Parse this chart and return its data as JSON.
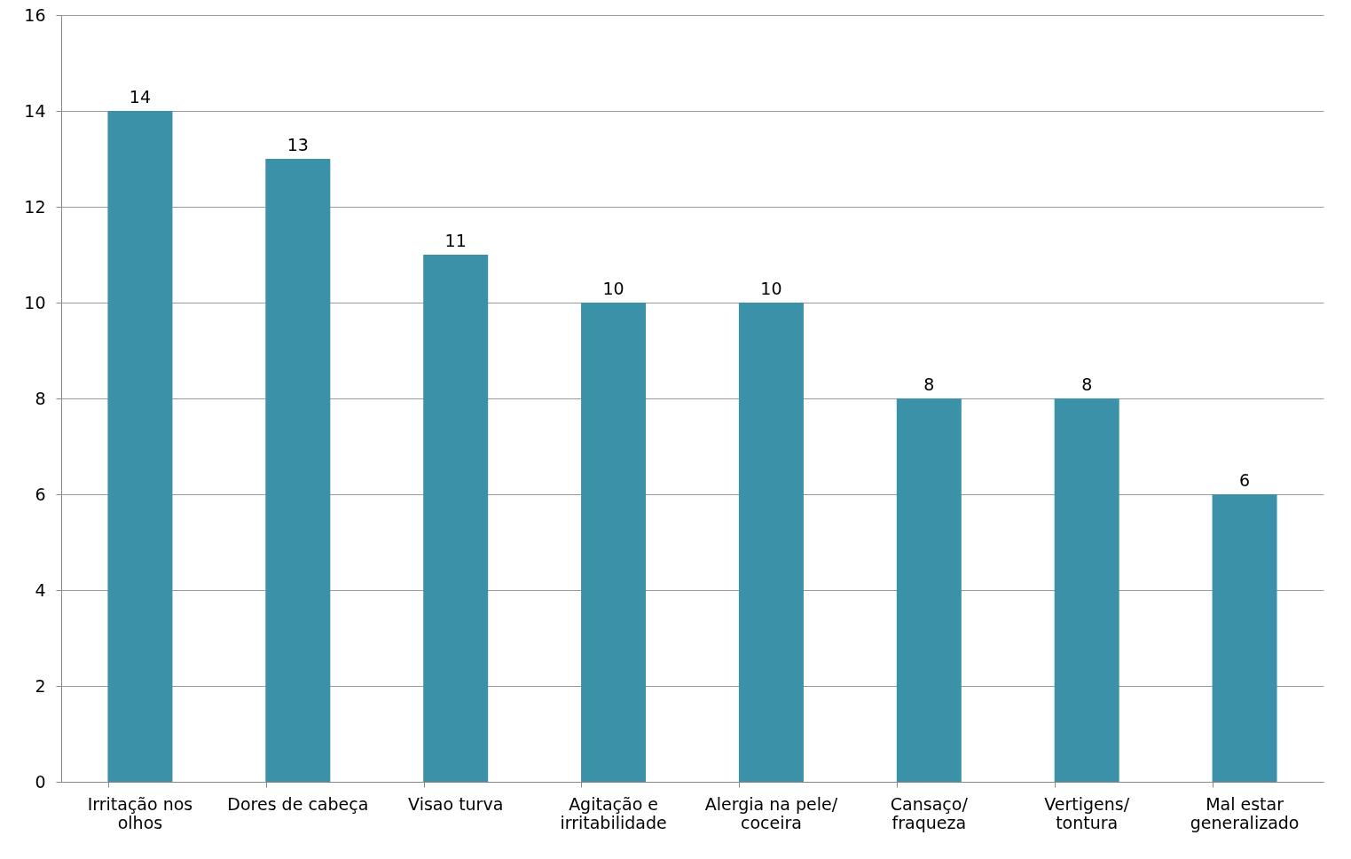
{
  "chart_data": {
    "type": "bar",
    "categories": [
      "Irritação nos olhos",
      "Dores de cabeça",
      "Visao turva",
      "Agitação e irritabilidade",
      "Alergia na pele/ coceira",
      "Cansaço/ fraqueza",
      "Vertigens/ tontura",
      "Mal estar generalizado"
    ],
    "values": [
      14,
      13,
      11,
      10,
      10,
      8,
      8,
      6
    ],
    "color": "#3a91a8",
    "ylim": [
      0,
      16
    ],
    "yticks": [
      0,
      2,
      4,
      6,
      8,
      10,
      12,
      14,
      16
    ],
    "grid": "y",
    "data_labels": true
  }
}
